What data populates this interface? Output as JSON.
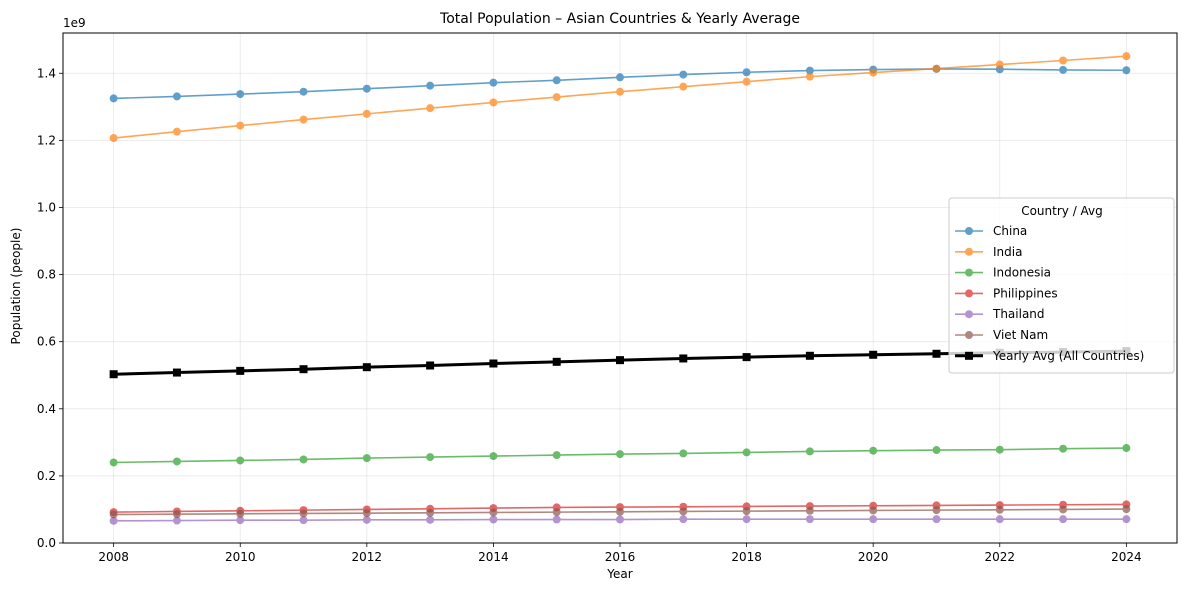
{
  "chart_data": {
    "type": "line",
    "title": "Total Population – Asian Countries & Yearly Average",
    "xlabel": "Year",
    "ylabel": "Population (people)",
    "y_exponent_label": "1e9",
    "x": [
      2008,
      2009,
      2010,
      2011,
      2012,
      2013,
      2014,
      2015,
      2016,
      2017,
      2018,
      2019,
      2020,
      2021,
      2022,
      2023,
      2024
    ],
    "xlim": [
      2007.2,
      2024.8
    ],
    "ylim": [
      0,
      1.52
    ],
    "x_ticks": [
      2008,
      2010,
      2012,
      2014,
      2016,
      2018,
      2020,
      2022,
      2024
    ],
    "y_ticks": [
      0.0,
      0.2,
      0.4,
      0.6,
      0.8,
      1.0,
      1.2,
      1.4
    ],
    "y_tick_labels": [
      "0.0",
      "0.2",
      "0.4",
      "0.6",
      "0.8",
      "1.0",
      "1.2",
      "1.4"
    ],
    "grid": true,
    "legend": {
      "title": "Country / Avg",
      "placement": "center-right"
    },
    "series": [
      {
        "name": "China",
        "color": "#1f77b4",
        "marker": "circle",
        "values": [
          1.325,
          1.331,
          1.338,
          1.345,
          1.354,
          1.363,
          1.372,
          1.379,
          1.388,
          1.396,
          1.403,
          1.408,
          1.411,
          1.413,
          1.412,
          1.41,
          1.409
        ]
      },
      {
        "name": "India",
        "color": "#ff7f0e",
        "marker": "circle",
        "values": [
          1.207,
          1.226,
          1.244,
          1.262,
          1.279,
          1.296,
          1.313,
          1.329,
          1.345,
          1.36,
          1.375,
          1.39,
          1.402,
          1.414,
          1.426,
          1.438,
          1.451
        ]
      },
      {
        "name": "Indonesia",
        "color": "#2ca02c",
        "marker": "circle",
        "values": [
          0.24,
          0.243,
          0.246,
          0.249,
          0.253,
          0.256,
          0.259,
          0.262,
          0.265,
          0.267,
          0.27,
          0.273,
          0.275,
          0.277,
          0.278,
          0.281,
          0.283
        ]
      },
      {
        "name": "Philippines",
        "color": "#d62728",
        "marker": "circle",
        "values": [
          0.092,
          0.094,
          0.096,
          0.098,
          0.1,
          0.102,
          0.104,
          0.106,
          0.107,
          0.108,
          0.109,
          0.11,
          0.111,
          0.112,
          0.113,
          0.114,
          0.115
        ]
      },
      {
        "name": "Thailand",
        "color": "#9467bd",
        "marker": "circle",
        "values": [
          0.066,
          0.067,
          0.068,
          0.068,
          0.069,
          0.069,
          0.07,
          0.07,
          0.07,
          0.071,
          0.071,
          0.071,
          0.071,
          0.071,
          0.071,
          0.071,
          0.071
        ]
      },
      {
        "name": "Viet Nam",
        "color": "#8c564b",
        "marker": "circle",
        "values": [
          0.085,
          0.086,
          0.087,
          0.088,
          0.089,
          0.09,
          0.091,
          0.092,
          0.093,
          0.094,
          0.095,
          0.096,
          0.097,
          0.098,
          0.099,
          0.1,
          0.101
        ]
      },
      {
        "name": "Yearly Avg (All Countries)",
        "color": "#000000",
        "marker": "square",
        "values": [
          0.503,
          0.508,
          0.513,
          0.518,
          0.524,
          0.529,
          0.535,
          0.54,
          0.545,
          0.55,
          0.554,
          0.558,
          0.561,
          0.564,
          0.567,
          0.569,
          0.572
        ]
      }
    ]
  }
}
